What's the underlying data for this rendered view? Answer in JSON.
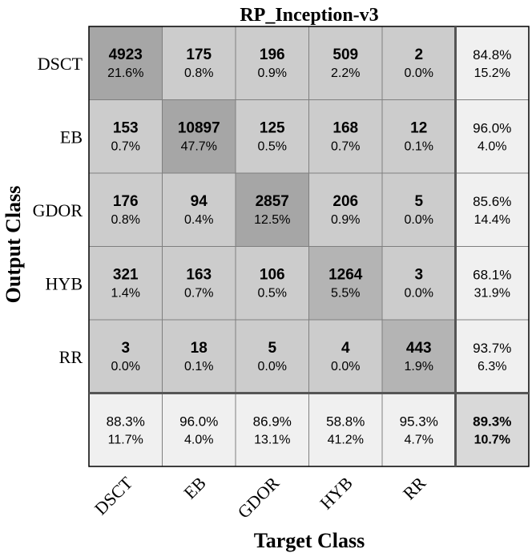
{
  "chart_data": {
    "type": "heatmap",
    "title": "RP_Inception-v3",
    "xlabel": "Target Class",
    "ylabel": "Output Class",
    "row_labels": [
      "DSCT",
      "EB",
      "GDOR",
      "HYB",
      "RR"
    ],
    "col_labels": [
      "DSCT",
      "EB",
      "GDOR",
      "HYB",
      "RR"
    ],
    "counts": [
      [
        "4923",
        "175",
        "196",
        "509",
        "2"
      ],
      [
        "153",
        "10897",
        "125",
        "168",
        "12"
      ],
      [
        "176",
        "94",
        "2857",
        "206",
        "5"
      ],
      [
        "321",
        "163",
        "106",
        "1264",
        "3"
      ],
      [
        "3",
        "18",
        "5",
        "4",
        "443"
      ]
    ],
    "percents": [
      [
        "21.6%",
        "0.8%",
        "0.9%",
        "2.2%",
        "0.0%"
      ],
      [
        "0.7%",
        "47.7%",
        "0.5%",
        "0.7%",
        "0.1%"
      ],
      [
        "0.8%",
        "0.4%",
        "12.5%",
        "0.9%",
        "0.0%"
      ],
      [
        "1.4%",
        "0.7%",
        "0.5%",
        "5.5%",
        "0.0%"
      ],
      [
        "0.0%",
        "0.1%",
        "0.0%",
        "0.0%",
        "1.9%"
      ]
    ],
    "row_summary": [
      [
        "84.8%",
        "15.2%"
      ],
      [
        "96.0%",
        "4.0%"
      ],
      [
        "85.6%",
        "14.4%"
      ],
      [
        "68.1%",
        "31.9%"
      ],
      [
        "93.7%",
        "6.3%"
      ]
    ],
    "col_summary": [
      [
        "88.3%",
        "11.7%"
      ],
      [
        "96.0%",
        "4.0%"
      ],
      [
        "86.9%",
        "13.1%"
      ],
      [
        "58.8%",
        "41.2%"
      ],
      [
        "95.3%",
        "4.7%"
      ]
    ],
    "overall": [
      "89.3%",
      "10.7%"
    ],
    "colors": {
      "diagonal_dark": "#a6a6a6",
      "diagonal_mid": "#b4b4b4",
      "offdiag": "#cccccc",
      "summary": "#f0f0f0",
      "overall": "#d9d9d9",
      "grid": "#7f7f7f",
      "frame": "#000000"
    }
  }
}
